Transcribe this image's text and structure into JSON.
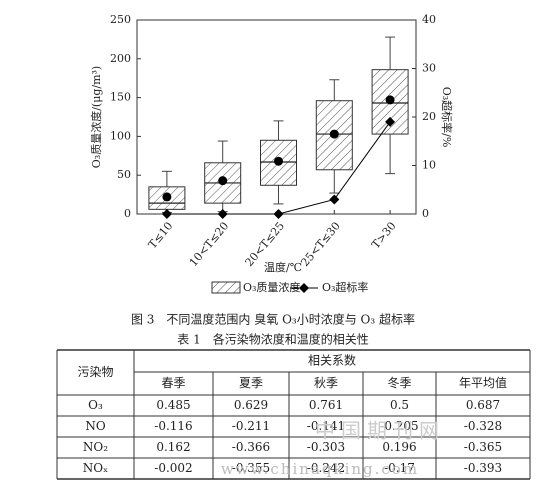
{
  "chart_data": {
    "type": "box",
    "categories": [
      "T≤10",
      "10<T≤20",
      "20<T≤25",
      "25<T≤30",
      "T>30"
    ],
    "box_series": {
      "name": "O₃质量浓度",
      "min": [
        2,
        3,
        13,
        27,
        52
      ],
      "q1": [
        6,
        14,
        37,
        57,
        103
      ],
      "median": [
        14,
        40,
        67,
        103,
        143
      ],
      "q3": [
        35,
        66,
        95,
        146,
        186
      ],
      "max": [
        55,
        94,
        120,
        173,
        228
      ],
      "mean": [
        22,
        43,
        68,
        103,
        147
      ]
    },
    "line_series": {
      "name": "O₃超标率",
      "values": [
        0,
        0,
        0,
        3,
        19
      ],
      "axis": "y2",
      "color": "#000000"
    },
    "ylabel": "O₃质量浓度/(μg/m³)",
    "y2label": "O₃超标率/%",
    "xlabel": "温度/℃",
    "ylim": [
      0,
      250
    ],
    "yticks": [
      0,
      50,
      100,
      150,
      200,
      250
    ],
    "y2lim": [
      0,
      40
    ],
    "y2ticks": [
      0,
      10,
      20,
      30,
      40
    ]
  },
  "figure_caption": "图 3　不同温度范围内 臭氧 O₃小时浓度与 O₃ 超标率",
  "table": {
    "title": "表 1　各污染物浓度和温度的相关性",
    "row_header": "污染物",
    "group_header": "相关系数",
    "columns": [
      "春季",
      "夏季",
      "秋季",
      "冬季",
      "年平均值"
    ],
    "rows": [
      [
        "O₃",
        "0.485",
        "0.629",
        "0.761",
        "0.5",
        "0.687"
      ],
      [
        "NO",
        "-0.116",
        "-0.211",
        "-0.141",
        "-0.205",
        "-0.328"
      ],
      [
        "NO₂",
        "0.162",
        "-0.366",
        "-0.303",
        "0.196",
        "-0.365"
      ],
      [
        "NOₓ",
        "-0.002",
        "-0.355",
        "-0.242",
        "-0.17",
        "-0.393"
      ]
    ]
  },
  "watermark": {
    "text": "中国期刊网",
    "url": "www.chinaqking.com"
  }
}
